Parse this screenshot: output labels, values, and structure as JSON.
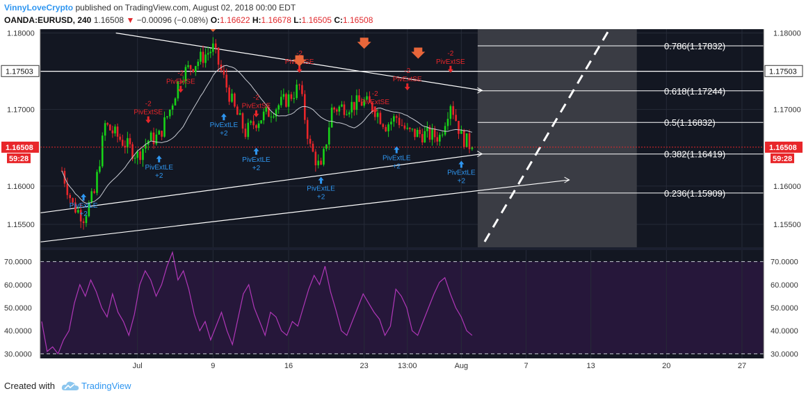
{
  "header": {
    "author": "VinnyLoveCrypto",
    "published_text": "published on TradingView.com, August 02, 2018 00:00 EDT",
    "symbol": "OANDA:EURUSD, 240",
    "last_price": "1.16508",
    "change": "−0.00096 (−0.08%)",
    "ohlc": [
      {
        "label": "O:",
        "value": "1.16622"
      },
      {
        "label": "H:",
        "value": "1.16678"
      },
      {
        "label": "L:",
        "value": "1.16505"
      },
      {
        "label": "C:",
        "value": "1.16508"
      }
    ]
  },
  "footer": {
    "created_with": "Created with",
    "brand": "TradingView"
  },
  "colors": {
    "background": "#131722",
    "up": "#18d318",
    "down": "#e8262a",
    "price_tag": "#e8262a",
    "rsi": "#b037b8",
    "rsi_fill": "#26173a",
    "projection_zone": "#3a3c44"
  },
  "chart_data": [
    {
      "type": "candlestick",
      "symbol": "OANDA:EURUSD",
      "timeframe": "240",
      "x_tick_labels": [
        "Jul",
        "9",
        "16",
        "23",
        "13:00",
        "Aug",
        "7",
        "13",
        "20",
        "27"
      ],
      "y_tick_labels": [
        "1.18000",
        "1.17000",
        "1.16000",
        "1.15500"
      ],
      "ylim": [
        1.152,
        1.1805
      ],
      "price_tag": {
        "value": "1.16508",
        "countdown": "59:28"
      },
      "level_tag": "1.17503",
      "close_path": [
        [
          "2018-06-25",
          1.162
        ],
        [
          "2018-06-26",
          1.1575
        ],
        [
          "2018-06-27",
          1.156
        ],
        [
          "2018-06-28",
          1.159
        ],
        [
          "2018-06-29",
          1.168
        ],
        [
          "2018-07-02",
          1.164
        ],
        [
          "2018-07-03",
          1.166
        ],
        [
          "2018-07-04",
          1.1665
        ],
        [
          "2018-07-05",
          1.17
        ],
        [
          "2018-07-06",
          1.1745
        ],
        [
          "2018-07-09",
          1.178
        ],
        [
          "2018-07-10",
          1.174
        ],
        [
          "2018-07-11",
          1.17
        ],
        [
          "2018-07-12",
          1.167
        ],
        [
          "2018-07-13",
          1.1685
        ],
        [
          "2018-07-16",
          1.1715
        ],
        [
          "2018-07-17",
          1.173
        ],
        [
          "2018-07-18",
          1.165
        ],
        [
          "2018-07-19",
          1.162
        ],
        [
          "2018-07-20",
          1.17
        ],
        [
          "2018-07-23",
          1.171
        ],
        [
          "2018-07-24",
          1.17
        ],
        [
          "2018-07-25",
          1.168
        ],
        [
          "2018-07-26",
          1.169
        ],
        [
          "2018-07-27",
          1.167
        ],
        [
          "2018-07-30",
          1.1665
        ],
        [
          "2018-07-31",
          1.171
        ],
        [
          "2018-08-01",
          1.1665
        ],
        [
          "2018-08-02",
          1.16508
        ]
      ],
      "signals": [
        {
          "text": "PivExtLE",
          "sub": "+2",
          "side": "long",
          "date": "2018-06-27",
          "price": 1.159
        },
        {
          "text": "PivExtLE",
          "sub": "+2",
          "side": "long",
          "date": "2018-07-04",
          "price": 1.164
        },
        {
          "text": "PivExtLE",
          "sub": "+2",
          "side": "long",
          "date": "2018-07-10",
          "price": 1.1695
        },
        {
          "text": "PivExtLE",
          "sub": "+2",
          "side": "long",
          "date": "2018-07-13",
          "price": 1.165
        },
        {
          "text": "PivExtLE",
          "sub": "+2",
          "side": "long",
          "date": "2018-07-19",
          "price": 1.1612
        },
        {
          "text": "PivExtLE",
          "sub": "+2",
          "side": "long",
          "date": "2018-07-26",
          "price": 1.1652
        },
        {
          "text": "PivExtLE",
          "sub": "+2",
          "side": "long",
          "date": "2018-08-01",
          "price": 1.1633
        },
        {
          "text": "PivExtSE",
          "sub": "-2",
          "side": "short",
          "date": "2018-07-03",
          "price": 1.1682
        },
        {
          "text": "PivExtSE",
          "sub": "-2",
          "side": "short",
          "date": "2018-07-06",
          "price": 1.1722
        },
        {
          "text": "PivExtSE",
          "sub": "-2",
          "side": "short",
          "date": "2018-07-13",
          "price": 1.169
        },
        {
          "text": "PivExtSE",
          "sub": "-2",
          "side": "short",
          "date": "2018-07-17",
          "price": 1.1748
        },
        {
          "text": "PivExtSE",
          "sub": "-2",
          "side": "short",
          "date": "2018-07-24",
          "price": 1.1695
        },
        {
          "text": "PivExtSE",
          "sub": "-2",
          "side": "short",
          "date": "2018-07-27",
          "price": 1.1725
        },
        {
          "text": "PivExtSE",
          "sub": "-2",
          "side": "short",
          "date": "2018-07-31",
          "price": 1.1748
        }
      ],
      "fib_levels": [
        {
          "label": "0.786(1.17832)",
          "value": 1.17832
        },
        {
          "label": "0.618(1.17244)",
          "value": 1.17244
        },
        {
          "label": "0.5(1.16832)",
          "value": 1.16832
        },
        {
          "label": "0.382(1.16419)",
          "value": 1.16419
        },
        {
          "label": "0.236(1.15909)",
          "value": 1.15909
        }
      ],
      "grid": true
    },
    {
      "type": "line",
      "ylim": [
        28,
        75
      ],
      "y_tick_labels": [
        "70.0000",
        "60.0000",
        "50.0000",
        "40.0000",
        "30.0000"
      ],
      "bands": [
        70,
        30
      ],
      "series": [
        {
          "values": [
            44,
            31,
            33,
            30,
            36,
            40,
            52,
            60,
            55,
            62,
            57,
            50,
            46,
            56,
            48,
            44,
            38,
            47,
            60,
            66,
            62,
            55,
            60,
            68,
            74,
            62,
            66,
            58,
            47,
            40,
            44,
            36,
            42,
            48,
            40,
            34,
            45,
            56,
            60,
            50,
            44,
            38,
            48,
            46,
            40,
            38,
            44,
            42,
            50,
            58,
            64,
            60,
            68,
            57,
            49,
            40,
            38,
            44,
            50,
            56,
            52,
            48,
            45,
            38,
            42,
            58,
            55,
            50,
            40,
            38,
            44,
            50,
            56,
            61,
            63,
            56,
            50,
            46,
            40,
            38
          ]
        }
      ]
    }
  ]
}
